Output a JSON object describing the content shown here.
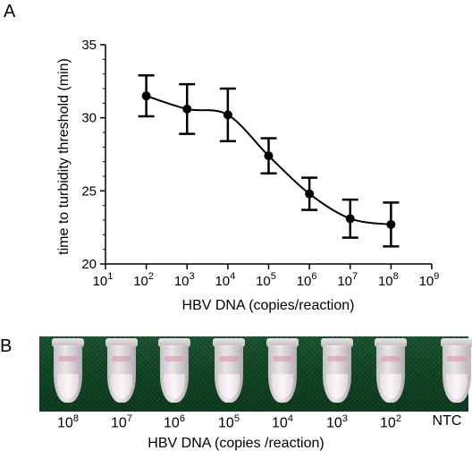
{
  "panel_a_label": "A",
  "panel_b_label": "B",
  "chart_data": {
    "type": "scatter",
    "xlabel": "HBV DNA (copies/reaction)",
    "ylabel": "time to turbidity threshold (min)",
    "x_scale": "log",
    "xlim": [
      10,
      1000000000
    ],
    "ylim": [
      20,
      35
    ],
    "x_tick_exponents": [
      1,
      2,
      3,
      4,
      5,
      6,
      7,
      8,
      9
    ],
    "x_tick_base": "10",
    "y_ticks": [
      20,
      25,
      30,
      35
    ],
    "series": [
      {
        "x": [
          100,
          1000,
          10000,
          100000,
          1000000,
          10000000,
          100000000
        ],
        "y": [
          31.5,
          30.6,
          30.2,
          27.4,
          24.8,
          23.1,
          22.7
        ],
        "error": [
          1.4,
          1.7,
          1.8,
          1.2,
          1.1,
          1.3,
          1.5
        ],
        "fit": "sigmoid"
      }
    ],
    "grid": false
  },
  "panel_b": {
    "tube_labels": [
      {
        "base": "10",
        "exp": "8"
      },
      {
        "base": "10",
        "exp": "7"
      },
      {
        "base": "10",
        "exp": "6"
      },
      {
        "base": "10",
        "exp": "5"
      },
      {
        "base": "10",
        "exp": "4"
      },
      {
        "base": "10",
        "exp": "3"
      },
      {
        "base": "10",
        "exp": "2"
      },
      {
        "base": "NTC",
        "exp": ""
      }
    ],
    "axis_title": "HBV DNA  (copies /reaction)"
  }
}
